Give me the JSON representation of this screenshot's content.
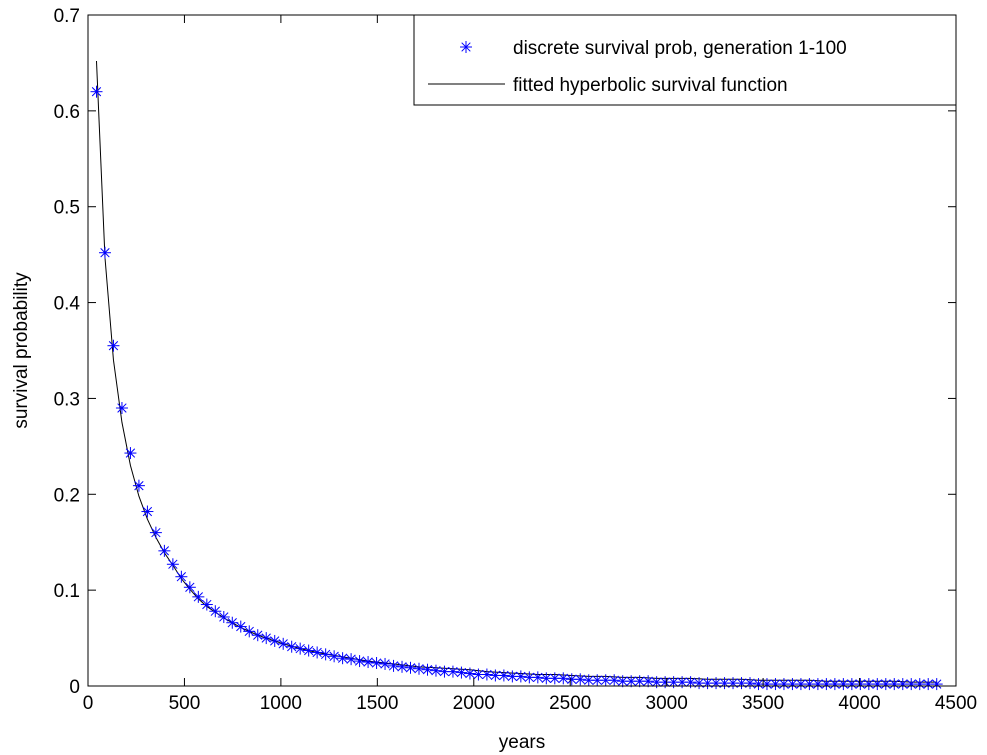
{
  "chart_data": {
    "type": "scatter",
    "title": "",
    "xlabel": "years",
    "ylabel": "survival probability",
    "xlim": [
      0,
      4500
    ],
    "ylim": [
      0,
      0.7
    ],
    "xticks": [
      0,
      500,
      1000,
      1500,
      2000,
      2500,
      3000,
      3500,
      4000,
      4500
    ],
    "xtick_labels": [
      "0",
      "500",
      "1000",
      "1500",
      "2000",
      "2500",
      "3000",
      "3500",
      "4000",
      "4500"
    ],
    "yticks": [
      0,
      0.1,
      0.2,
      0.3,
      0.4,
      0.5,
      0.6,
      0.7
    ],
    "ytick_labels": [
      "0",
      "0.1",
      "0.2",
      "0.3",
      "0.4",
      "0.5",
      "0.6",
      "0.7"
    ],
    "grid": false,
    "legend_position": "top-right",
    "series": [
      {
        "name": "discrete survival prob, generation 1-100",
        "kind": "markers",
        "marker": "asterisk",
        "color": "#0000ff",
        "points": [
          [
            44,
            0.62
          ],
          [
            88,
            0.452
          ],
          [
            132,
            0.355
          ],
          [
            176,
            0.29
          ],
          [
            220,
            0.243
          ],
          [
            264,
            0.209
          ],
          [
            308,
            0.182
          ],
          [
            352,
            0.16
          ],
          [
            396,
            0.141
          ],
          [
            440,
            0.127
          ],
          [
            484,
            0.114
          ],
          [
            528,
            0.103
          ],
          [
            572,
            0.093
          ],
          [
            616,
            0.085
          ],
          [
            660,
            0.078
          ],
          [
            704,
            0.072
          ],
          [
            748,
            0.066
          ],
          [
            792,
            0.062
          ],
          [
            836,
            0.057
          ],
          [
            880,
            0.053
          ],
          [
            924,
            0.05
          ],
          [
            968,
            0.047
          ],
          [
            1012,
            0.044
          ],
          [
            1056,
            0.041
          ],
          [
            1100,
            0.039
          ],
          [
            1144,
            0.037
          ],
          [
            1188,
            0.035
          ],
          [
            1232,
            0.033
          ],
          [
            1276,
            0.031
          ],
          [
            1320,
            0.029
          ],
          [
            1364,
            0.028
          ],
          [
            1408,
            0.026
          ],
          [
            1452,
            0.025
          ],
          [
            1496,
            0.024
          ],
          [
            1540,
            0.023
          ],
          [
            1584,
            0.021
          ],
          [
            1628,
            0.02
          ],
          [
            1672,
            0.019
          ],
          [
            1716,
            0.018
          ],
          [
            1760,
            0.017
          ],
          [
            1804,
            0.016
          ],
          [
            1848,
            0.015
          ],
          [
            1892,
            0.015
          ],
          [
            1936,
            0.014
          ],
          [
            1980,
            0.013
          ],
          [
            2024,
            0.012
          ],
          [
            2068,
            0.012
          ],
          [
            2112,
            0.011
          ],
          [
            2156,
            0.011
          ],
          [
            2200,
            0.01
          ],
          [
            2244,
            0.01
          ],
          [
            2288,
            0.009
          ],
          [
            2332,
            0.009
          ],
          [
            2376,
            0.008
          ],
          [
            2420,
            0.008
          ],
          [
            2464,
            0.008
          ],
          [
            2508,
            0.007
          ],
          [
            2552,
            0.007
          ],
          [
            2596,
            0.006
          ],
          [
            2640,
            0.006
          ],
          [
            2684,
            0.006
          ],
          [
            2728,
            0.006
          ],
          [
            2772,
            0.005
          ],
          [
            2816,
            0.005
          ],
          [
            2860,
            0.005
          ],
          [
            2904,
            0.005
          ],
          [
            2948,
            0.004
          ],
          [
            2992,
            0.004
          ],
          [
            3036,
            0.004
          ],
          [
            3080,
            0.004
          ],
          [
            3124,
            0.004
          ],
          [
            3168,
            0.003
          ],
          [
            3212,
            0.003
          ],
          [
            3256,
            0.003
          ],
          [
            3300,
            0.003
          ],
          [
            3344,
            0.003
          ],
          [
            3388,
            0.003
          ],
          [
            3432,
            0.003
          ],
          [
            3476,
            0.002
          ],
          [
            3520,
            0.002
          ],
          [
            3564,
            0.002
          ],
          [
            3608,
            0.002
          ],
          [
            3652,
            0.002
          ],
          [
            3696,
            0.002
          ],
          [
            3740,
            0.002
          ],
          [
            3784,
            0.002
          ],
          [
            3828,
            0.002
          ],
          [
            3872,
            0.002
          ],
          [
            3916,
            0.002
          ],
          [
            3960,
            0.002
          ],
          [
            4004,
            0.002
          ],
          [
            4048,
            0.002
          ],
          [
            4092,
            0.002
          ],
          [
            4136,
            0.002
          ],
          [
            4180,
            0.002
          ],
          [
            4224,
            0.002
          ],
          [
            4268,
            0.002
          ],
          [
            4312,
            0.002
          ],
          [
            4356,
            0.002
          ],
          [
            4400,
            0.002
          ]
        ]
      },
      {
        "name": "fitted hyperbolic survival function",
        "kind": "line",
        "color": "#000000",
        "points": [
          [
            44,
            0.652
          ],
          [
            88,
            0.447
          ],
          [
            132,
            0.34
          ],
          [
            176,
            0.275
          ],
          [
            220,
            0.23
          ],
          [
            264,
            0.198
          ],
          [
            308,
            0.174
          ],
          [
            352,
            0.155
          ],
          [
            396,
            0.139
          ],
          [
            440,
            0.126
          ],
          [
            484,
            0.112
          ],
          [
            528,
            0.101
          ],
          [
            572,
            0.091
          ],
          [
            616,
            0.083
          ],
          [
            660,
            0.077
          ],
          [
            704,
            0.071
          ],
          [
            748,
            0.066
          ],
          [
            792,
            0.061
          ],
          [
            836,
            0.057
          ],
          [
            880,
            0.053
          ],
          [
            924,
            0.05
          ],
          [
            968,
            0.047
          ],
          [
            1012,
            0.044
          ],
          [
            1100,
            0.039
          ],
          [
            1188,
            0.035
          ],
          [
            1276,
            0.032
          ],
          [
            1364,
            0.029
          ],
          [
            1452,
            0.026
          ],
          [
            1540,
            0.024
          ],
          [
            1628,
            0.022
          ],
          [
            1716,
            0.02
          ],
          [
            1804,
            0.019
          ],
          [
            1892,
            0.018
          ],
          [
            1980,
            0.017
          ],
          [
            2068,
            0.015
          ],
          [
            2156,
            0.014
          ],
          [
            2244,
            0.013
          ],
          [
            2332,
            0.012
          ],
          [
            2420,
            0.012
          ],
          [
            2508,
            0.011
          ],
          [
            2596,
            0.01
          ],
          [
            2684,
            0.01
          ],
          [
            2772,
            0.009
          ],
          [
            2860,
            0.009
          ],
          [
            2948,
            0.008
          ],
          [
            3036,
            0.008
          ],
          [
            3124,
            0.008
          ],
          [
            3212,
            0.007
          ],
          [
            3300,
            0.007
          ],
          [
            3388,
            0.007
          ],
          [
            3476,
            0.006
          ],
          [
            3564,
            0.006
          ],
          [
            3652,
            0.006
          ],
          [
            3740,
            0.006
          ],
          [
            3828,
            0.005
          ],
          [
            3916,
            0.005
          ],
          [
            4004,
            0.005
          ],
          [
            4092,
            0.005
          ],
          [
            4180,
            0.005
          ],
          [
            4268,
            0.004
          ],
          [
            4356,
            0.004
          ],
          [
            4400,
            0.004
          ]
        ]
      }
    ]
  }
}
